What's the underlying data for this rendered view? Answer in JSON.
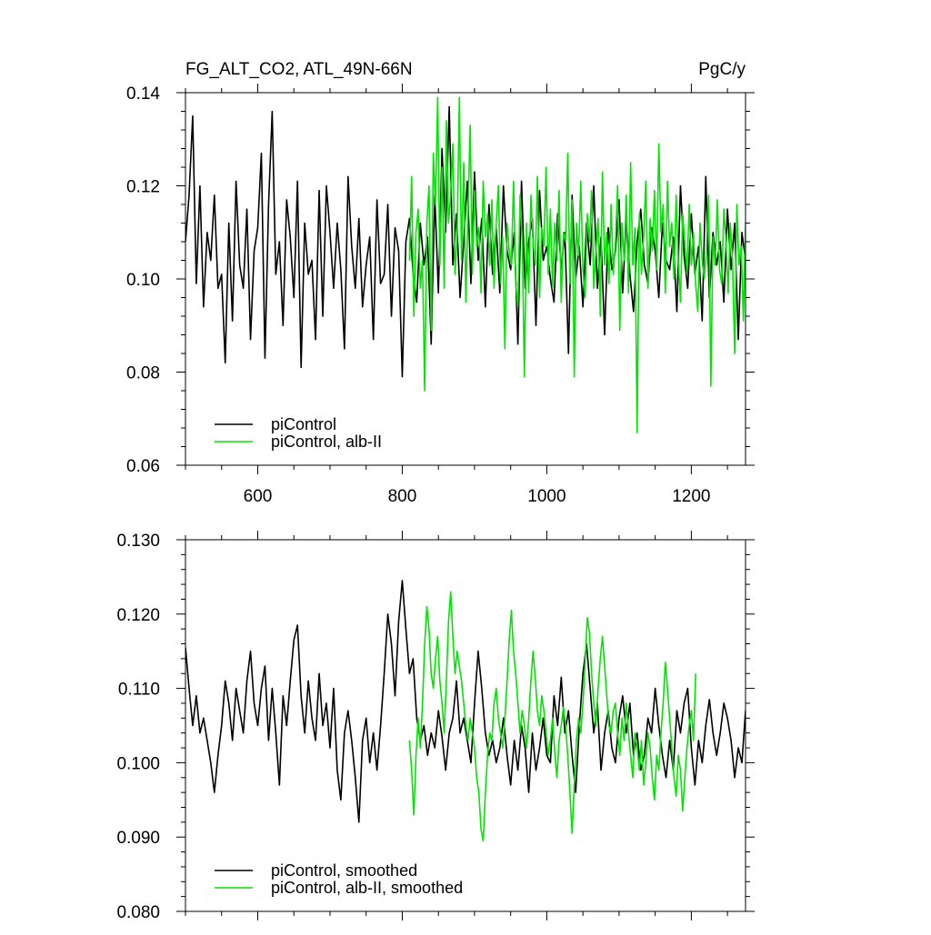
{
  "page": {
    "title_left": "FG_ALT_CO2, ATL_49N-66N",
    "title_right": "PgC/y"
  },
  "colors": {
    "control": "#000000",
    "alb": "#00e600",
    "axis": "#000000",
    "background": "#ffffff"
  },
  "chart_data": [
    {
      "type": "line",
      "title": "FG_ALT_CO2, ATL_49N-66N",
      "units": "PgC/y",
      "xlabel": "",
      "ylabel": "",
      "xlim": [
        500,
        1275
      ],
      "ylim": [
        0.06,
        0.14
      ],
      "x_ticks": [
        600,
        800,
        1000,
        1200
      ],
      "x_tick_labels": [
        "600",
        "800",
        "1000",
        "1200"
      ],
      "y_ticks": [
        0.06,
        0.08,
        0.1,
        0.12,
        0.14
      ],
      "y_tick_labels": [
        "0.06",
        "0.08",
        "0.10",
        "0.12",
        "0.14"
      ],
      "grid": false,
      "legend_position": "bottom-left",
      "series": [
        {
          "name": "piControl",
          "color": "#000000",
          "x_start": 500,
          "x_step": 5,
          "values": [
            0.108,
            0.118,
            0.135,
            0.099,
            0.12,
            0.094,
            0.11,
            0.104,
            0.118,
            0.098,
            0.101,
            0.082,
            0.112,
            0.091,
            0.121,
            0.103,
            0.098,
            0.115,
            0.087,
            0.106,
            0.111,
            0.127,
            0.083,
            0.116,
            0.136,
            0.101,
            0.108,
            0.09,
            0.117,
            0.109,
            0.096,
            0.121,
            0.081,
            0.112,
            0.101,
            0.104,
            0.087,
            0.119,
            0.092,
            0.12,
            0.11,
            0.098,
            0.112,
            0.102,
            0.085,
            0.122,
            0.107,
            0.098,
            0.113,
            0.094,
            0.103,
            0.109,
            0.087,
            0.117,
            0.099,
            0.101,
            0.116,
            0.092,
            0.111,
            0.106,
            0.079,
            0.108,
            0.113,
            0.101,
            0.095,
            0.112,
            0.103,
            0.109,
            0.086,
            0.118,
            0.097,
            0.128,
            0.11,
            0.137,
            0.103,
            0.114,
            0.096,
            0.108,
            0.121,
            0.099,
            0.123,
            0.104,
            0.113,
            0.094,
            0.116,
            0.101,
            0.111,
            0.097,
            0.12,
            0.106,
            0.102,
            0.11,
            0.086,
            0.121,
            0.098,
            0.108,
            0.113,
            0.09,
            0.119,
            0.104,
            0.107,
            0.1,
            0.095,
            0.114,
            0.102,
            0.11,
            0.084,
            0.118,
            0.1,
            0.107,
            0.094,
            0.112,
            0.103,
            0.12,
            0.098,
            0.109,
            0.088,
            0.111,
            0.102,
            0.106,
            0.117,
            0.097,
            0.113,
            0.101,
            0.093,
            0.108,
            0.115,
            0.103,
            0.099,
            0.111,
            0.106,
            0.096,
            0.112,
            0.104,
            0.102,
            0.109,
            0.093,
            0.12,
            0.105,
            0.098,
            0.114,
            0.101,
            0.107,
            0.091,
            0.122,
            0.096,
            0.11,
            0.103,
            0.108,
            0.095,
            0.115,
            0.102,
            0.112,
            0.087,
            0.11,
            0.104,
            0.098,
            0.113,
            0.1,
            0.09,
            0.111
          ]
        },
        {
          "name": "piControl, alb-II",
          "color": "#00e600",
          "x_start": 810,
          "x_step": 3,
          "values": [
            0.104,
            0.122,
            0.092,
            0.11,
            0.115,
            0.098,
            0.104,
            0.076,
            0.112,
            0.12,
            0.089,
            0.127,
            0.116,
            0.139,
            0.103,
            0.124,
            0.098,
            0.134,
            0.112,
            0.118,
            0.129,
            0.101,
            0.11,
            0.139,
            0.104,
            0.125,
            0.095,
            0.115,
            0.133,
            0.101,
            0.119,
            0.107,
            0.111,
            0.097,
            0.121,
            0.109,
            0.114,
            0.103,
            0.117,
            0.098,
            0.112,
            0.12,
            0.099,
            0.109,
            0.085,
            0.112,
            0.106,
            0.103,
            0.121,
            0.099,
            0.094,
            0.118,
            0.108,
            0.079,
            0.112,
            0.097,
            0.118,
            0.108,
            0.103,
            0.122,
            0.096,
            0.111,
            0.107,
            0.124,
            0.101,
            0.115,
            0.098,
            0.112,
            0.104,
            0.119,
            0.095,
            0.11,
            0.108,
            0.127,
            0.099,
            0.117,
            0.079,
            0.112,
            0.105,
            0.121,
            0.102,
            0.096,
            0.114,
            0.108,
            0.119,
            0.098,
            0.106,
            0.113,
            0.092,
            0.123,
            0.103,
            0.11,
            0.099,
            0.116,
            0.101,
            0.108,
            0.12,
            0.089,
            0.112,
            0.104,
            0.118,
            0.097,
            0.125,
            0.103,
            0.111,
            0.067,
            0.114,
            0.101,
            0.109,
            0.121,
            0.098,
            0.113,
            0.106,
            0.119,
            0.102,
            0.129,
            0.11,
            0.116,
            0.097,
            0.121,
            0.107,
            0.112,
            0.1,
            0.118,
            0.104,
            0.095,
            0.114,
            0.108,
            0.101,
            0.116,
            0.103,
            0.11,
            0.099,
            0.093,
            0.112,
            0.104,
            0.1,
            0.106,
            0.118,
            0.077,
            0.109,
            0.103,
            0.117,
            0.102,
            0.099,
            0.115,
            0.108,
            0.097,
            0.112,
            0.104,
            0.084,
            0.116,
            0.103,
            0.107,
            0.091,
            0.112,
            0.101,
            0.119,
            0.096,
            0.108,
            0.105,
            0.111,
            0.099,
            0.117,
            0.123
          ]
        }
      ]
    },
    {
      "type": "line",
      "title": "",
      "units": "",
      "xlabel": "",
      "ylabel": "",
      "xlim": [
        500,
        1275
      ],
      "ylim": [
        0.08,
        0.13
      ],
      "x_ticks": [
        600,
        800,
        1000,
        1200
      ],
      "x_tick_labels": [],
      "y_ticks": [
        0.08,
        0.09,
        0.1,
        0.11,
        0.12,
        0.13
      ],
      "y_tick_labels": [
        "0.080",
        "0.090",
        "0.100",
        "0.110",
        "0.120",
        "0.130"
      ],
      "grid": false,
      "legend_position": "bottom-left",
      "series": [
        {
          "name": "piControl, smoothed",
          "color": "#000000",
          "x_start": 500,
          "x_step": 5,
          "values": [
            0.1155,
            0.11,
            0.105,
            0.109,
            0.104,
            0.106,
            0.103,
            0.1,
            0.096,
            0.101,
            0.105,
            0.111,
            0.108,
            0.103,
            0.11,
            0.107,
            0.104,
            0.111,
            0.115,
            0.108,
            0.105,
            0.11,
            0.113,
            0.103,
            0.11,
            0.104,
            0.097,
            0.109,
            0.105,
            0.111,
            0.1165,
            0.1185,
            0.109,
            0.104,
            0.111,
            0.106,
            0.103,
            0.112,
            0.105,
            0.108,
            0.102,
            0.11,
            0.099,
            0.095,
            0.104,
            0.107,
            0.103,
            0.098,
            0.092,
            0.103,
            0.106,
            0.1,
            0.104,
            0.099,
            0.105,
            0.112,
            0.12,
            0.116,
            0.109,
            0.119,
            0.1245,
            0.118,
            0.112,
            0.114,
            0.106,
            0.103,
            0.105,
            0.101,
            0.104,
            0.102,
            0.107,
            0.1035,
            0.099,
            0.104,
            0.106,
            0.111,
            0.104,
            0.106,
            0.103,
            0.1,
            0.108,
            0.115,
            0.11,
            0.104,
            0.101,
            0.103,
            0.1,
            0.102,
            0.106,
            0.101,
            0.097,
            0.103,
            0.099,
            0.105,
            0.102,
            0.096,
            0.104,
            0.099,
            0.102,
            0.106,
            0.101,
            0.1,
            0.109,
            0.105,
            0.1115,
            0.104,
            0.107,
            0.101,
            0.096,
            0.105,
            0.112,
            0.116,
            0.11,
            0.104,
            0.108,
            0.099,
            0.104,
            0.107,
            0.102,
            0.1,
            0.106,
            0.109,
            0.104,
            0.108,
            0.101,
            0.104,
            0.099,
            0.101,
            0.106,
            0.104,
            0.11,
            0.105,
            0.101,
            0.098,
            0.103,
            0.099,
            0.107,
            0.104,
            0.108,
            0.11,
            0.102,
            0.097,
            0.103,
            0.1,
            0.105,
            0.1085,
            0.104,
            0.101,
            0.104,
            0.108,
            0.106,
            0.103,
            0.098,
            0.102,
            0.1,
            0.107,
            0.103
          ]
        },
        {
          "name": "piControl, alb-II, smoothed",
          "color": "#00e600",
          "x_start": 810,
          "x_step": 3,
          "values": [
            0.103,
            0.099,
            0.093,
            0.101,
            0.106,
            0.102,
            0.108,
            0.116,
            0.121,
            0.118,
            0.112,
            0.11,
            0.114,
            0.117,
            0.111,
            0.108,
            0.104,
            0.111,
            0.119,
            0.123,
            0.117,
            0.112,
            0.115,
            0.113,
            0.111,
            0.108,
            0.105,
            0.103,
            0.106,
            0.104,
            0.102,
            0.098,
            0.096,
            0.091,
            0.0895,
            0.096,
            0.101,
            0.104,
            0.103,
            0.108,
            0.11,
            0.106,
            0.104,
            0.102,
            0.106,
            0.111,
            0.1165,
            0.1205,
            0.115,
            0.112,
            0.108,
            0.104,
            0.107,
            0.105,
            0.102,
            0.106,
            0.111,
            0.115,
            0.1115,
            0.107,
            0.105,
            0.109,
            0.107,
            0.104,
            0.101,
            0.103,
            0.106,
            0.1015,
            0.098,
            0.103,
            0.105,
            0.1075,
            0.105,
            0.101,
            0.096,
            0.0905,
            0.097,
            0.103,
            0.106,
            0.104,
            0.108,
            0.1135,
            0.1195,
            0.1175,
            0.112,
            0.108,
            0.105,
            0.11,
            0.114,
            0.117,
            0.113,
            0.109,
            0.105,
            0.104,
            0.107,
            0.108,
            0.104,
            0.101,
            0.106,
            0.103,
            0.108,
            0.104,
            0.101,
            0.098,
            0.104,
            0.102,
            0.099,
            0.103,
            0.097,
            0.1,
            0.104,
            0.102,
            0.098,
            0.095,
            0.101,
            0.099,
            0.104,
            0.108,
            0.1135,
            0.11,
            0.106,
            0.102,
            0.098,
            0.0955,
            0.101,
            0.099,
            0.0935,
            0.098,
            0.102,
            0.105,
            0.107,
            0.103,
            0.112
          ]
        }
      ]
    }
  ]
}
